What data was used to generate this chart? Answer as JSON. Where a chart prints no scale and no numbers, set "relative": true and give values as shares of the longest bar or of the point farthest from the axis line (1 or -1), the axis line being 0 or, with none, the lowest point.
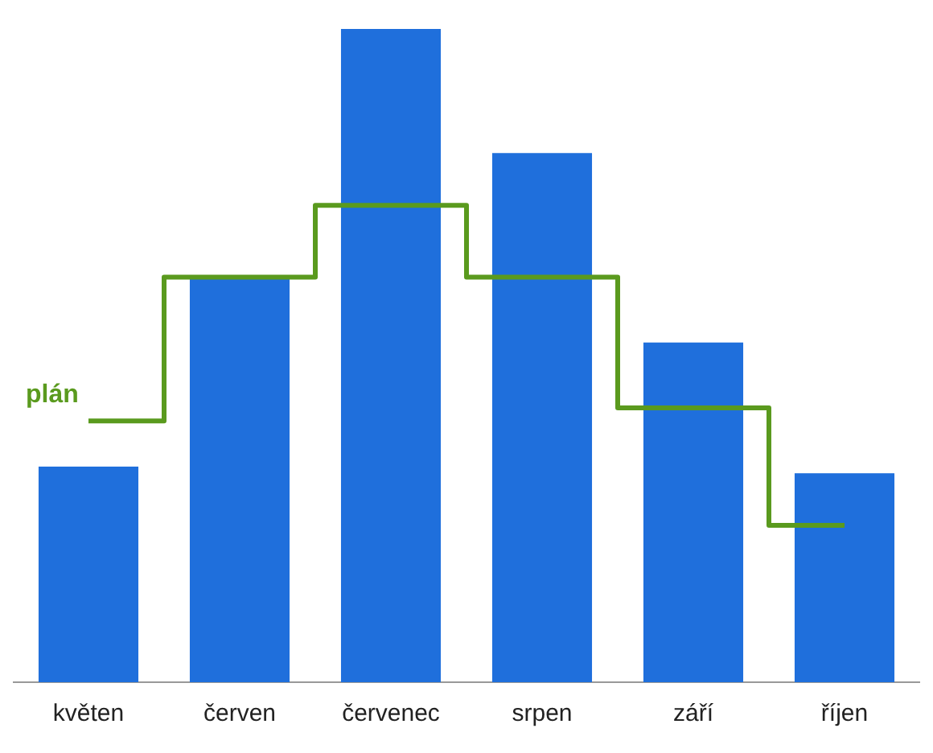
{
  "chart_data": {
    "type": "bar",
    "relative": true,
    "categories": [
      "květen",
      "červen",
      "červenec",
      "srpen",
      "září",
      "říjen"
    ],
    "series": [
      {
        "color": "#1f6fdc",
        "values": [
          0.33,
          0.62,
          1,
          0.81,
          0.52,
          0.32
        ]
      },
      {
        "type": "step",
        "name": "plán",
        "color": "#5a9a1e",
        "values": [
          0.4,
          0.62,
          0.73,
          0.62,
          0.42,
          0.24
        ]
      }
    ],
    "grid": false,
    "legend": false
  }
}
